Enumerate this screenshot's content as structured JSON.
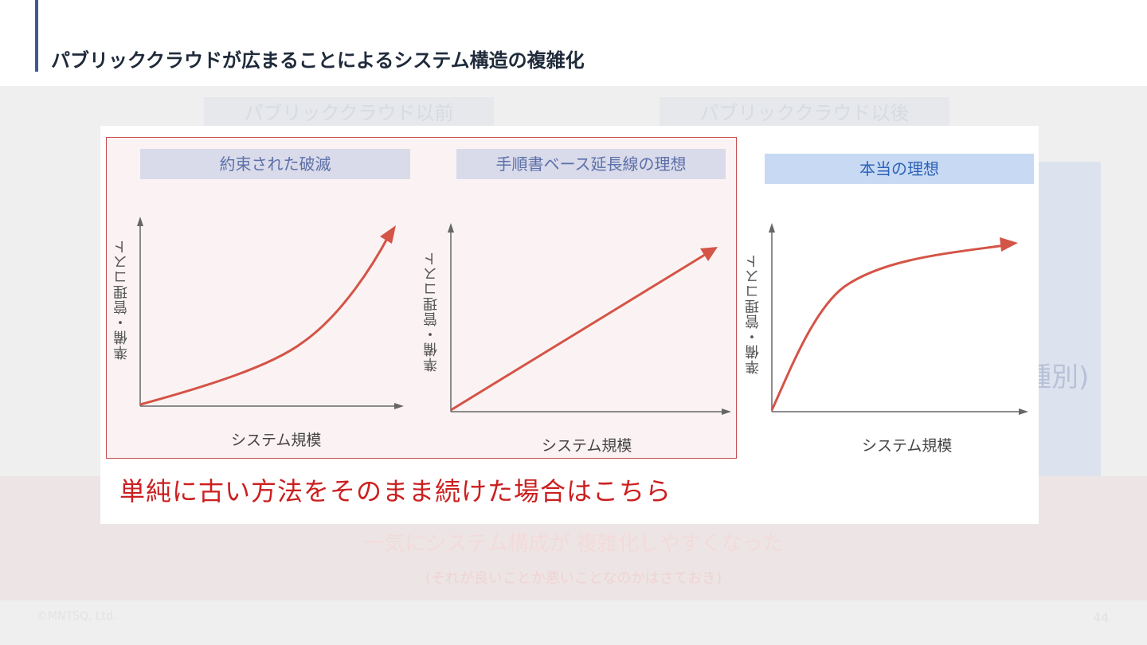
{
  "title": "パブリッククラウドが広まることによるシステム構造の複雑化",
  "background": {
    "tab_before": "パブリッククラウド以前",
    "tab_after": "パブリッククラウド以後",
    "paren_fragment": "種別)",
    "pink_main": "一気にシステム構成が 複雑化しやすくなった",
    "pink_sub": "(それが良いことか悪いことなのかはさておき)",
    "footer_left": "©MNTSQ, Ltd.",
    "footer_right": "44"
  },
  "charts": [
    {
      "label": "約束された破滅",
      "ylabel": "準備・管理コスト",
      "xlabel": "システム規模",
      "curve": "exponential"
    },
    {
      "label": "手順書ベース延長線の理想",
      "ylabel": "準備・管理コスト",
      "xlabel": "システム規模",
      "curve": "linear"
    },
    {
      "label": "本当の理想",
      "ylabel": "準備・管理コスト",
      "xlabel": "システム規模",
      "curve": "logarithmic"
    }
  ],
  "caption": "単純に古い方法をそのまま続けた場合はこちら",
  "colors": {
    "curve": "#d45447",
    "red_text": "#cc1f1f",
    "title_bar": "#3f5a92"
  }
}
